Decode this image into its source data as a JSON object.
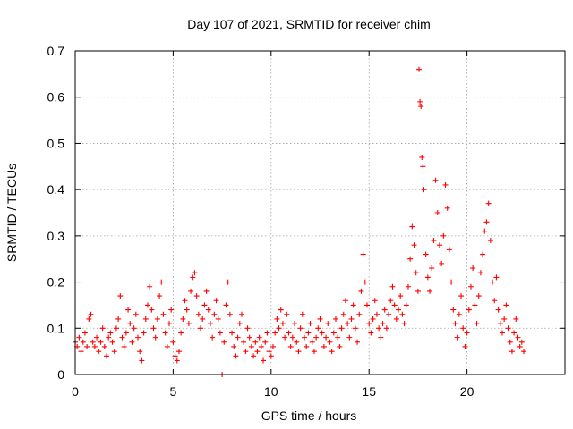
{
  "chart_data": {
    "type": "scatter",
    "title": "Day 107 of 2021, SRMTID for receiver chim",
    "xlabel": "GPS time / hours",
    "ylabel": "SRMTID / TECUs",
    "xlim": [
      0,
      25
    ],
    "ylim": [
      0,
      0.7
    ],
    "x_ticks": [
      0,
      5,
      10,
      15,
      20
    ],
    "x_tick_labels": [
      "0",
      "5",
      "10",
      "15",
      "20"
    ],
    "y_ticks": [
      0,
      0.1,
      0.2,
      0.3,
      0.4,
      0.5,
      0.6,
      0.7
    ],
    "y_tick_labels": [
      "0",
      "0.1",
      "0.2",
      "0.3",
      "0.4",
      "0.5",
      "0.6",
      "0.7"
    ],
    "grid": true,
    "marker": "+",
    "color": "#ff0000",
    "series": [
      {
        "name": "SRMTID",
        "points": [
          [
            0.0,
            0.07
          ],
          [
            0.1,
            0.06
          ],
          [
            0.2,
            0.08
          ],
          [
            0.3,
            0.05
          ],
          [
            0.4,
            0.07
          ],
          [
            0.5,
            0.09
          ],
          [
            0.6,
            0.06
          ],
          [
            0.7,
            0.12
          ],
          [
            0.8,
            0.13
          ],
          [
            0.9,
            0.07
          ],
          [
            1.0,
            0.06
          ],
          [
            1.1,
            0.08
          ],
          [
            1.2,
            0.05
          ],
          [
            1.3,
            0.07
          ],
          [
            1.4,
            0.1
          ],
          [
            1.5,
            0.06
          ],
          [
            1.6,
            0.04
          ],
          [
            1.7,
            0.08
          ],
          [
            1.8,
            0.09
          ],
          [
            1.9,
            0.07
          ],
          [
            2.0,
            0.05
          ],
          [
            2.1,
            0.1
          ],
          [
            2.2,
            0.12
          ],
          [
            2.3,
            0.17
          ],
          [
            2.4,
            0.08
          ],
          [
            2.5,
            0.06
          ],
          [
            2.6,
            0.09
          ],
          [
            2.7,
            0.14
          ],
          [
            2.8,
            0.11
          ],
          [
            2.9,
            0.07
          ],
          [
            3.0,
            0.1
          ],
          [
            3.1,
            0.13
          ],
          [
            3.2,
            0.08
          ],
          [
            3.3,
            0.05
          ],
          [
            3.4,
            0.03
          ],
          [
            3.5,
            0.09
          ],
          [
            3.6,
            0.12
          ],
          [
            3.7,
            0.15
          ],
          [
            3.8,
            0.19
          ],
          [
            3.9,
            0.14
          ],
          [
            4.0,
            0.1
          ],
          [
            4.1,
            0.08
          ],
          [
            4.2,
            0.12
          ],
          [
            4.3,
            0.17
          ],
          [
            4.4,
            0.2
          ],
          [
            4.5,
            0.13
          ],
          [
            4.6,
            0.09
          ],
          [
            4.7,
            0.06
          ],
          [
            4.8,
            0.11
          ],
          [
            4.9,
            0.14
          ],
          [
            5.0,
            0.07
          ],
          [
            5.1,
            0.04
          ],
          [
            5.2,
            0.03
          ],
          [
            5.3,
            0.05
          ],
          [
            5.4,
            0.09
          ],
          [
            5.5,
            0.12
          ],
          [
            5.6,
            0.16
          ],
          [
            5.7,
            0.14
          ],
          [
            5.8,
            0.11
          ],
          [
            5.9,
            0.18
          ],
          [
            6.0,
            0.21
          ],
          [
            6.1,
            0.22
          ],
          [
            6.2,
            0.17
          ],
          [
            6.3,
            0.13
          ],
          [
            6.4,
            0.1
          ],
          [
            6.5,
            0.12
          ],
          [
            6.6,
            0.15
          ],
          [
            6.7,
            0.18
          ],
          [
            6.8,
            0.14
          ],
          [
            6.9,
            0.11
          ],
          [
            7.0,
            0.08
          ],
          [
            7.1,
            0.13
          ],
          [
            7.2,
            0.16
          ],
          [
            7.3,
            0.12
          ],
          [
            7.4,
            0.09
          ],
          [
            7.5,
            0.0
          ],
          [
            7.6,
            0.07
          ],
          [
            7.7,
            0.15
          ],
          [
            7.8,
            0.2
          ],
          [
            7.9,
            0.13
          ],
          [
            8.0,
            0.09
          ],
          [
            8.1,
            0.06
          ],
          [
            8.2,
            0.04
          ],
          [
            8.3,
            0.08
          ],
          [
            8.4,
            0.11
          ],
          [
            8.5,
            0.13
          ],
          [
            8.6,
            0.07
          ],
          [
            8.7,
            0.05
          ],
          [
            8.8,
            0.1
          ],
          [
            8.9,
            0.08
          ],
          [
            9.0,
            0.06
          ],
          [
            9.1,
            0.04
          ],
          [
            9.2,
            0.07
          ],
          [
            9.3,
            0.05
          ],
          [
            9.4,
            0.08
          ],
          [
            9.5,
            0.06
          ],
          [
            9.6,
            0.03
          ],
          [
            9.7,
            0.07
          ],
          [
            9.8,
            0.09
          ],
          [
            9.9,
            0.05
          ],
          [
            10.0,
            0.04
          ],
          [
            10.1,
            0.06
          ],
          [
            10.2,
            0.09
          ],
          [
            10.3,
            0.12
          ],
          [
            10.4,
            0.1
          ],
          [
            10.5,
            0.14
          ],
          [
            10.6,
            0.11
          ],
          [
            10.7,
            0.08
          ],
          [
            10.8,
            0.13
          ],
          [
            10.9,
            0.09
          ],
          [
            11.0,
            0.06
          ],
          [
            11.1,
            0.08
          ],
          [
            11.2,
            0.11
          ],
          [
            11.3,
            0.07
          ],
          [
            11.4,
            0.05
          ],
          [
            11.5,
            0.1
          ],
          [
            11.6,
            0.13
          ],
          [
            11.7,
            0.08
          ],
          [
            11.8,
            0.06
          ],
          [
            11.9,
            0.09
          ],
          [
            12.0,
            0.11
          ],
          [
            12.1,
            0.07
          ],
          [
            12.2,
            0.05
          ],
          [
            12.3,
            0.08
          ],
          [
            12.4,
            0.1
          ],
          [
            12.5,
            0.12
          ],
          [
            12.6,
            0.09
          ],
          [
            12.7,
            0.06
          ],
          [
            12.8,
            0.08
          ],
          [
            12.9,
            0.11
          ],
          [
            13.0,
            0.07
          ],
          [
            13.1,
            0.05
          ],
          [
            13.2,
            0.09
          ],
          [
            13.3,
            0.12
          ],
          [
            13.4,
            0.08
          ],
          [
            13.5,
            0.06
          ],
          [
            13.6,
            0.1
          ],
          [
            13.7,
            0.13
          ],
          [
            13.8,
            0.16
          ],
          [
            13.9,
            0.11
          ],
          [
            14.0,
            0.08
          ],
          [
            14.1,
            0.12
          ],
          [
            14.2,
            0.15
          ],
          [
            14.3,
            0.1
          ],
          [
            14.4,
            0.07
          ],
          [
            14.5,
            0.13
          ],
          [
            14.6,
            0.18
          ],
          [
            14.7,
            0.26
          ],
          [
            14.8,
            0.2
          ],
          [
            14.9,
            0.15
          ],
          [
            15.0,
            0.11
          ],
          [
            15.1,
            0.09
          ],
          [
            15.2,
            0.12
          ],
          [
            15.3,
            0.16
          ],
          [
            15.4,
            0.13
          ],
          [
            15.5,
            0.1
          ],
          [
            15.6,
            0.08
          ],
          [
            15.7,
            0.11
          ],
          [
            15.8,
            0.14
          ],
          [
            15.9,
            0.1
          ],
          [
            16.0,
            0.13
          ],
          [
            16.1,
            0.16
          ],
          [
            16.2,
            0.19
          ],
          [
            16.3,
            0.15
          ],
          [
            16.4,
            0.12
          ],
          [
            16.5,
            0.14
          ],
          [
            16.6,
            0.17
          ],
          [
            16.7,
            0.13
          ],
          [
            16.8,
            0.11
          ],
          [
            16.9,
            0.15
          ],
          [
            17.0,
            0.19
          ],
          [
            17.1,
            0.25
          ],
          [
            17.2,
            0.32
          ],
          [
            17.3,
            0.28
          ],
          [
            17.4,
            0.22
          ],
          [
            17.5,
            0.18
          ],
          [
            17.55,
            0.66
          ],
          [
            17.6,
            0.59
          ],
          [
            17.65,
            0.58
          ],
          [
            17.7,
            0.47
          ],
          [
            17.75,
            0.45
          ],
          [
            17.8,
            0.4
          ],
          [
            17.9,
            0.26
          ],
          [
            18.0,
            0.21
          ],
          [
            18.1,
            0.18
          ],
          [
            18.2,
            0.23
          ],
          [
            18.3,
            0.29
          ],
          [
            18.4,
            0.42
          ],
          [
            18.5,
            0.35
          ],
          [
            18.6,
            0.28
          ],
          [
            18.7,
            0.24
          ],
          [
            18.8,
            0.3
          ],
          [
            18.9,
            0.41
          ],
          [
            19.0,
            0.36
          ],
          [
            19.1,
            0.27
          ],
          [
            19.2,
            0.2
          ],
          [
            19.3,
            0.14
          ],
          [
            19.4,
            0.11
          ],
          [
            19.5,
            0.08
          ],
          [
            19.6,
            0.13
          ],
          [
            19.7,
            0.17
          ],
          [
            19.8,
            0.1
          ],
          [
            19.9,
            0.06
          ],
          [
            20.0,
            0.09
          ],
          [
            20.1,
            0.14
          ],
          [
            20.2,
            0.19
          ],
          [
            20.3,
            0.23
          ],
          [
            20.4,
            0.15
          ],
          [
            20.5,
            0.11
          ],
          [
            20.6,
            0.17
          ],
          [
            20.7,
            0.22
          ],
          [
            20.8,
            0.26
          ],
          [
            20.9,
            0.31
          ],
          [
            21.0,
            0.33
          ],
          [
            21.1,
            0.37
          ],
          [
            21.2,
            0.29
          ],
          [
            21.3,
            0.2
          ],
          [
            21.4,
            0.16
          ],
          [
            21.5,
            0.21
          ],
          [
            21.6,
            0.14
          ],
          [
            21.7,
            0.11
          ],
          [
            21.8,
            0.09
          ],
          [
            21.9,
            0.12
          ],
          [
            22.0,
            0.15
          ],
          [
            22.1,
            0.1
          ],
          [
            22.2,
            0.07
          ],
          [
            22.3,
            0.05
          ],
          [
            22.4,
            0.09
          ],
          [
            22.5,
            0.12
          ],
          [
            22.6,
            0.08
          ],
          [
            22.7,
            0.06
          ],
          [
            22.8,
            0.07
          ],
          [
            22.9,
            0.05
          ]
        ]
      }
    ]
  }
}
